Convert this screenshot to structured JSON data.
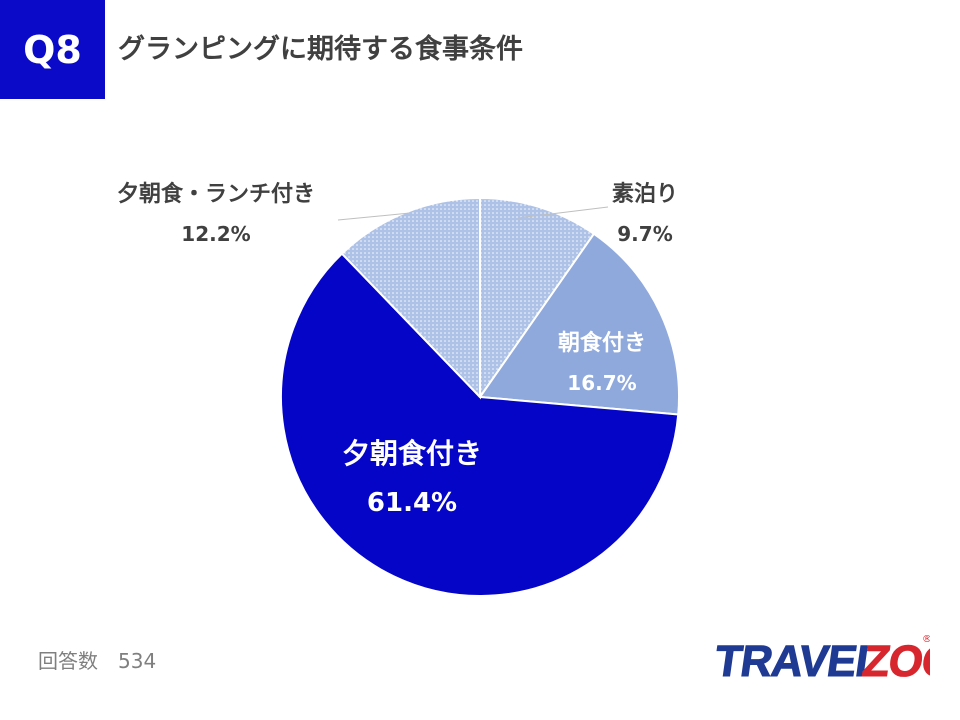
{
  "header": {
    "badge": "Q8",
    "title": "グランピングに期待する食事条件"
  },
  "footer": {
    "response_count": "回答数　534"
  },
  "logo": {
    "text": "TRAVELZOO"
  },
  "colors": {
    "accent": "#0a0ac8",
    "title": "#404040",
    "muted": "#7f7f7f",
    "slice_breakfast": "#8fa9dc",
    "slice_dots": "#aec1e6",
    "slice_dinner_breakfast": "#0505c8",
    "logo_blue": "#1f3a93",
    "logo_red": "#d7262d"
  },
  "chart_data": {
    "type": "pie",
    "title": "",
    "slices": [
      {
        "label": "素泊り",
        "value": 9.7,
        "value_label": "9.7%"
      },
      {
        "label": "朝食付き",
        "value": 16.7,
        "value_label": "16.7%"
      },
      {
        "label": "夕朝食付き",
        "value": 61.4,
        "value_label": "61.4%"
      },
      {
        "label": "夕朝食・ランチ付き",
        "value": 12.2,
        "value_label": "12.2%"
      }
    ],
    "start_angle": "12 o'clock",
    "direction": "clockwise",
    "legend": "none"
  }
}
